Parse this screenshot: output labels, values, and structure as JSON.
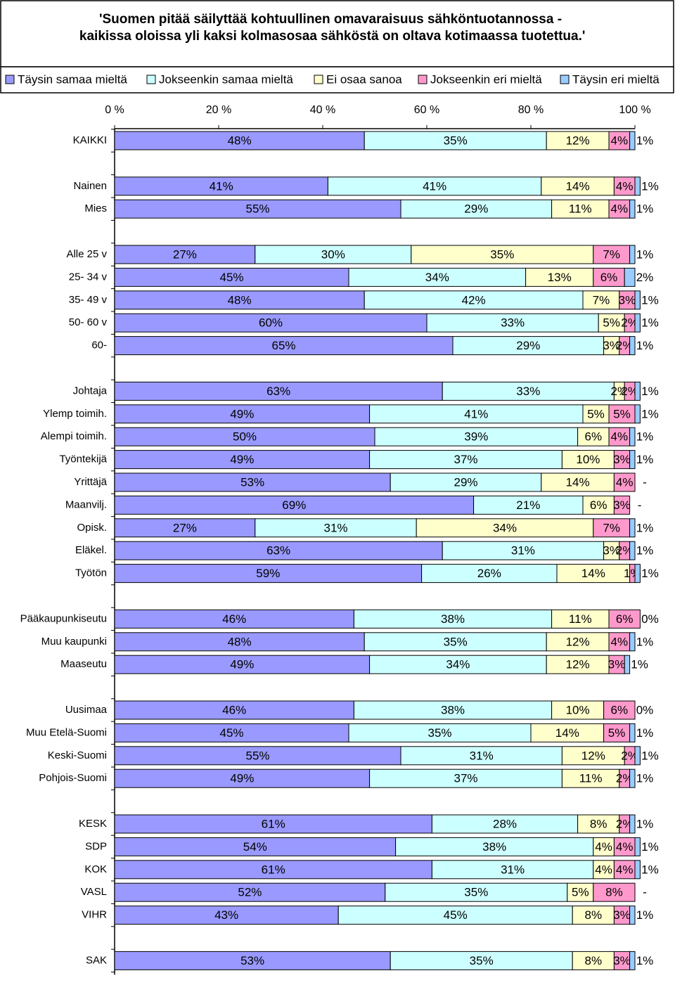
{
  "chart_data": {
    "type": "stacked_barh",
    "title": "'Suomen pitää säilyttää kohtuullinen omavaraisuus sähköntuotannossa - kaikissa oloissa yli kaksi kolmasosaa sähköstä on oltava kotimaassa tuotettua.'",
    "categories": [
      "KAIKKI",
      null,
      "Nainen",
      "Mies",
      null,
      "Alle 25 v",
      "25- 34 v",
      "35- 49 v",
      "50- 60 v",
      "60-",
      null,
      "Johtaja",
      "Ylemp toimih.",
      "Alempi toimih.",
      "Työntekijä",
      "Yrittäjä",
      "Maanvilj.",
      "Opisk.",
      "Eläkel.",
      "Työtön",
      null,
      "Pääkaupunkiseutu",
      "Muu kaupunki",
      "Maaseutu",
      null,
      "Uusimaa",
      "Muu Etelä-Suomi",
      "Keski-Suomi",
      "Pohjois-Suomi",
      null,
      "KESK",
      "SDP",
      "KOK",
      "VASL",
      "VIHR",
      null,
      "SAK"
    ],
    "xlim": [
      0,
      100
    ],
    "xticks": [
      {
        "value": 0,
        "label": "0 %"
      },
      {
        "value": 20,
        "label": "20 %"
      },
      {
        "value": 40,
        "label": "40 %"
      },
      {
        "value": 60,
        "label": "60 %"
      },
      {
        "value": 80,
        "label": "80 %"
      },
      {
        "value": 100,
        "label": "100 %"
      }
    ],
    "series": [
      {
        "name": "Täysin samaa mieltä",
        "color": "#9999ff",
        "values": [
          48,
          null,
          41,
          55,
          null,
          27,
          45,
          48,
          60,
          65,
          null,
          63,
          49,
          50,
          49,
          53,
          69,
          27,
          63,
          59,
          null,
          46,
          48,
          49,
          null,
          46,
          45,
          55,
          49,
          null,
          61,
          54,
          61,
          52,
          43,
          null,
          53
        ],
        "value_labels": [
          "48%",
          null,
          "41%",
          "55%",
          null,
          "27%",
          "45%",
          "48%",
          "60%",
          "65%",
          null,
          "63%",
          "49%",
          "50%",
          "49%",
          "53%",
          "69%",
          "27%",
          "63%",
          "59%",
          null,
          "46%",
          "48%",
          "49%",
          null,
          "46%",
          "45%",
          "55%",
          "49%",
          null,
          "61%",
          "54%",
          "61%",
          "52%",
          "43%",
          null,
          "53%"
        ]
      },
      {
        "name": "Jokseenkin samaa mieltä",
        "color": "#ccffff",
        "values": [
          35,
          null,
          41,
          29,
          null,
          30,
          34,
          42,
          33,
          29,
          null,
          33,
          41,
          39,
          37,
          29,
          21,
          31,
          31,
          26,
          null,
          38,
          35,
          34,
          null,
          38,
          35,
          31,
          37,
          null,
          28,
          38,
          31,
          35,
          45,
          null,
          35
        ],
        "value_labels": [
          "35%",
          null,
          "41%",
          "29%",
          null,
          "30%",
          "34%",
          "42%",
          "33%",
          "29%",
          null,
          "33%",
          "41%",
          "39%",
          "37%",
          "29%",
          "21%",
          "31%",
          "31%",
          "26%",
          null,
          "38%",
          "35%",
          "34%",
          null,
          "38%",
          "35%",
          "31%",
          "37%",
          null,
          "28%",
          "38%",
          "31%",
          "35%",
          "45%",
          null,
          "35%"
        ]
      },
      {
        "name": "Ei osaa sanoa",
        "color": "#ffffcc",
        "values": [
          12,
          null,
          14,
          11,
          null,
          35,
          13,
          7,
          5,
          3,
          null,
          2,
          5,
          6,
          10,
          14,
          6,
          34,
          3,
          14,
          null,
          11,
          12,
          12,
          null,
          10,
          14,
          12,
          11,
          null,
          8,
          4,
          4,
          5,
          8,
          null,
          8
        ],
        "value_labels": [
          "12%",
          null,
          "14%",
          "11%",
          null,
          "35%",
          "13%",
          "7%",
          "5%",
          "3%",
          null,
          "2%",
          "5%",
          "6%",
          "10%",
          "14%",
          "6%",
          "34%",
          "3%",
          "14%",
          null,
          "11%",
          "12%",
          "12%",
          null,
          "10%",
          "14%",
          "12%",
          "11%",
          null,
          "8%",
          "4%",
          "4%",
          "5%",
          "8%",
          null,
          "8%"
        ]
      },
      {
        "name": "Jokseenkin eri mieltä",
        "color": "#ff99cc",
        "values": [
          4,
          null,
          4,
          4,
          null,
          7,
          6,
          3,
          2,
          2,
          null,
          2,
          5,
          4,
          3,
          4,
          3,
          7,
          2,
          1,
          null,
          6,
          4,
          3,
          null,
          6,
          5,
          2,
          2,
          null,
          2,
          4,
          4,
          8,
          3,
          null,
          3
        ],
        "value_labels": [
          "4%",
          null,
          "4%",
          "4%",
          null,
          "7%",
          "6%",
          "3%",
          "2%",
          "2%",
          null,
          "2%",
          "5%",
          "4%",
          "3%",
          "4%",
          "3%",
          "7%",
          "2%",
          "1%",
          null,
          "6%",
          "4%",
          "3%",
          null,
          "6%",
          "5%",
          "2%",
          "2%",
          null,
          "2%",
          "4%",
          "4%",
          "8%",
          "3%",
          null,
          "3%"
        ]
      },
      {
        "name": "Täysin eri mieltä",
        "color": "#99ccff",
        "values": [
          1,
          null,
          1,
          1,
          null,
          1,
          2,
          1,
          1,
          1,
          null,
          1,
          1,
          1,
          1,
          0,
          0,
          1,
          1,
          1,
          null,
          0,
          1,
          1,
          null,
          0,
          1,
          1,
          1,
          null,
          1,
          1,
          1,
          0,
          1,
          null,
          1
        ],
        "value_labels": [
          "1%",
          null,
          "1%",
          "1%",
          null,
          "1%",
          "2%",
          "1%",
          "1%",
          "1%",
          null,
          "1%",
          "1%",
          "1%",
          "1%",
          "-",
          "-",
          "1%",
          "1%",
          "1%",
          null,
          "0%",
          "1%",
          "1%",
          null,
          "0%",
          "1%",
          "1%",
          "1%",
          null,
          "1%",
          "1%",
          "1%",
          "-",
          "1%",
          null,
          "1%"
        ]
      }
    ]
  }
}
